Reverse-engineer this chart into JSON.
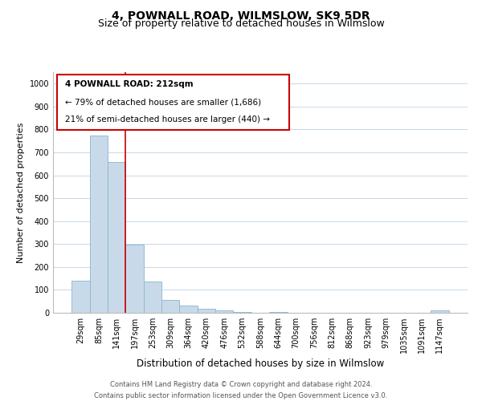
{
  "title": "4, POWNALL ROAD, WILMSLOW, SK9 5DR",
  "subtitle": "Size of property relative to detached houses in Wilmslow",
  "xlabel": "Distribution of detached houses by size in Wilmslow",
  "ylabel": "Number of detached properties",
  "bar_labels": [
    "29sqm",
    "85sqm",
    "141sqm",
    "197sqm",
    "253sqm",
    "309sqm",
    "364sqm",
    "420sqm",
    "476sqm",
    "532sqm",
    "588sqm",
    "644sqm",
    "700sqm",
    "756sqm",
    "812sqm",
    "868sqm",
    "923sqm",
    "979sqm",
    "1035sqm",
    "1091sqm",
    "1147sqm"
  ],
  "bar_values": [
    140,
    775,
    657,
    297,
    135,
    57,
    32,
    17,
    10,
    5,
    0,
    4,
    0,
    0,
    0,
    0,
    0,
    0,
    0,
    0,
    10
  ],
  "bar_color": "#c8daea",
  "bar_edge_color": "#8ab4cc",
  "vline_x_index": 3,
  "vline_color": "#cc0000",
  "annotation_line1": "4 POWNALL ROAD: 212sqm",
  "annotation_line2": "← 79% of detached houses are smaller (1,686)",
  "annotation_line3": "21% of semi-detached houses are larger (440) →",
  "ylim": [
    0,
    1050
  ],
  "yticks": [
    0,
    100,
    200,
    300,
    400,
    500,
    600,
    700,
    800,
    900,
    1000
  ],
  "grid_color": "#c8d8e8",
  "title_fontsize": 10,
  "subtitle_fontsize": 9,
  "xlabel_fontsize": 8.5,
  "ylabel_fontsize": 8,
  "tick_fontsize": 7,
  "annot_fontsize": 7.5,
  "footnote_fontsize": 6,
  "footnote": "Contains HM Land Registry data © Crown copyright and database right 2024.\nContains public sector information licensed under the Open Government Licence v3.0."
}
